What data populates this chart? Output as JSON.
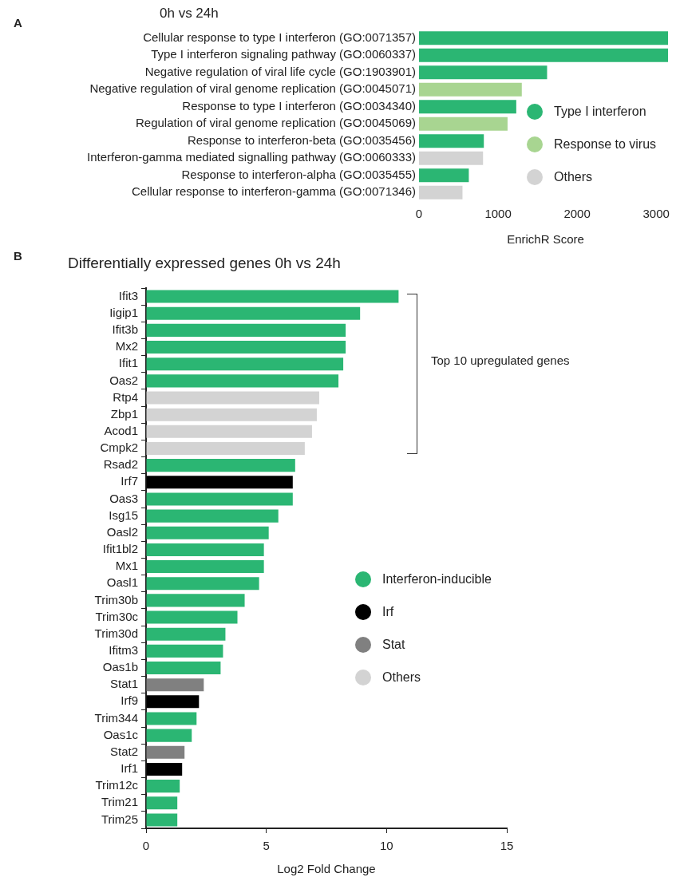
{
  "chart_data": [
    {
      "type": "bar",
      "orientation": "horizontal",
      "title": "0h vs 24h",
      "xlabel": "EnrichR Score",
      "categories": [
        "Cellular response to type I interferon (GO:0071357)",
        "Type I interferon signaling pathway (GO:0060337)",
        "Negative regulation of viral life cycle (GO:1903901)",
        "Negative regulation of viral genome replication (GO:0045071)",
        "Response to type I interferon (GO:0034340)",
        "Regulation of viral genome replication (GO:0045069)",
        "Response to interferon-beta (GO:0035456)",
        "Interferon-gamma mediated signalling pathway (GO:0060333)",
        "Response to interferon-alpha (GO:0035455)",
        "Cellular response to interferon-gamma (GO:0071346)"
      ],
      "series": [
        {
          "name": "Type I interferon",
          "color": "#2bb673",
          "values": [
            3150,
            3150,
            1620,
            null,
            1230,
            null,
            820,
            null,
            630,
            null
          ]
        },
        {
          "name": "Response to virus",
          "color": "#a8d591",
          "values": [
            null,
            null,
            null,
            1300,
            null,
            1120,
            null,
            null,
            null,
            null
          ]
        },
        {
          "name": "Others",
          "color": "#d3d3d3",
          "values": [
            null,
            null,
            null,
            null,
            null,
            null,
            null,
            810,
            null,
            550
          ]
        }
      ],
      "xlim": [
        0,
        3200
      ],
      "xticks": [
        0,
        1000,
        2000,
        3000
      ],
      "grid": false,
      "legend": "right",
      "annotations": [
        "A"
      ]
    },
    {
      "type": "bar",
      "orientation": "horizontal",
      "title": "Differentially expressed genes 0h vs 24h",
      "xlabel": "Log2 Fold Change",
      "categories": [
        "Ifit3",
        "Iigip1",
        "Ifit3b",
        "Mx2",
        "Ifit1",
        "Oas2",
        "Rtp4",
        "Zbp1",
        "Acod1",
        "Cmpk2",
        "Rsad2",
        "Irf7",
        "Oas3",
        "Isg15",
        "Oasl2",
        "Ifit1bl2",
        "Mx1",
        "Oasl1",
        "Trim30b",
        "Trim30c",
        "Trim30d",
        "Ifitm3",
        "Oas1b",
        "Stat1",
        "Irf9",
        "Trim344",
        "Oas1c",
        "Stat2",
        "Irf1",
        "Trim12c",
        "Trim21",
        "Trim25"
      ],
      "series": [
        {
          "name": "Interferon-inducible",
          "color": "#2bb673",
          "values": [
            10.5,
            8.9,
            8.3,
            8.3,
            8.2,
            8.0,
            null,
            null,
            null,
            null,
            6.2,
            null,
            6.1,
            5.5,
            5.1,
            4.9,
            4.9,
            4.7,
            4.1,
            3.8,
            3.3,
            3.2,
            3.1,
            null,
            null,
            2.1,
            1.9,
            null,
            null,
            1.4,
            1.3,
            1.3
          ]
        },
        {
          "name": "Irf",
          "color": "#000000",
          "values": [
            null,
            null,
            null,
            null,
            null,
            null,
            null,
            null,
            null,
            null,
            null,
            6.1,
            null,
            null,
            null,
            null,
            null,
            null,
            null,
            null,
            null,
            null,
            null,
            null,
            2.2,
            null,
            null,
            null,
            1.5,
            null,
            null,
            null
          ]
        },
        {
          "name": "Stat",
          "color": "#808080",
          "values": [
            null,
            null,
            null,
            null,
            null,
            null,
            null,
            null,
            null,
            null,
            null,
            null,
            null,
            null,
            null,
            null,
            null,
            null,
            null,
            null,
            null,
            null,
            null,
            2.4,
            null,
            null,
            null,
            1.6,
            null,
            null,
            null,
            null
          ]
        },
        {
          "name": "Others",
          "color": "#d3d3d3",
          "values": [
            null,
            null,
            null,
            null,
            null,
            null,
            7.2,
            7.1,
            6.9,
            6.6,
            null,
            null,
            null,
            null,
            null,
            null,
            null,
            null,
            null,
            null,
            null,
            null,
            null,
            null,
            null,
            null,
            null,
            null,
            null,
            null,
            null,
            null
          ]
        }
      ],
      "xlim": [
        0,
        15
      ],
      "xticks": [
        0,
        5,
        10,
        15
      ],
      "grid": false,
      "legend": "right",
      "annotations": [
        "B",
        "Top 10 upregulated genes"
      ]
    }
  ]
}
